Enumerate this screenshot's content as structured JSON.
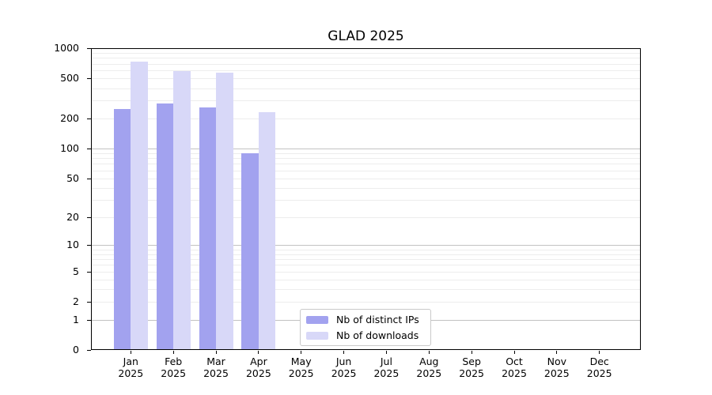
{
  "chart_data": {
    "type": "bar",
    "title": "GLAD 2025",
    "categories": [
      "Jan",
      "Feb",
      "Mar",
      "Apr",
      "May",
      "Jun",
      "Jul",
      "Aug",
      "Sep",
      "Oct",
      "Nov",
      "Dec"
    ],
    "category_year": "2025",
    "series": [
      {
        "name": "Nb of distinct IPs",
        "color": "#a2a2ef",
        "values": [
          246,
          284,
          257,
          89,
          null,
          null,
          null,
          null,
          null,
          null,
          null,
          null
        ]
      },
      {
        "name": "Nb of downloads",
        "color": "#d8d8f8",
        "values": [
          738,
          594,
          569,
          231,
          null,
          null,
          null,
          null,
          null,
          null,
          null,
          null
        ]
      }
    ],
    "yscale": "symlog",
    "ylim": [
      0,
      1000
    ],
    "yticks": [
      0,
      1,
      2,
      5,
      10,
      20,
      50,
      100,
      200,
      500,
      1000
    ],
    "grid": {
      "major": [
        1,
        10,
        100,
        1000
      ],
      "minor": [
        2,
        3,
        4,
        5,
        6,
        7,
        8,
        9,
        20,
        30,
        40,
        50,
        60,
        70,
        80,
        90,
        200,
        300,
        400,
        500,
        600,
        700,
        800,
        900
      ]
    },
    "legend_position": "bottom-center",
    "xlabel": "",
    "ylabel": ""
  },
  "colors": {
    "background": "#ffffff",
    "axis": "#000000",
    "major_grid": "#c2c2c2",
    "minor_grid": "#ededed",
    "legend_border": "#c9c9c9"
  }
}
